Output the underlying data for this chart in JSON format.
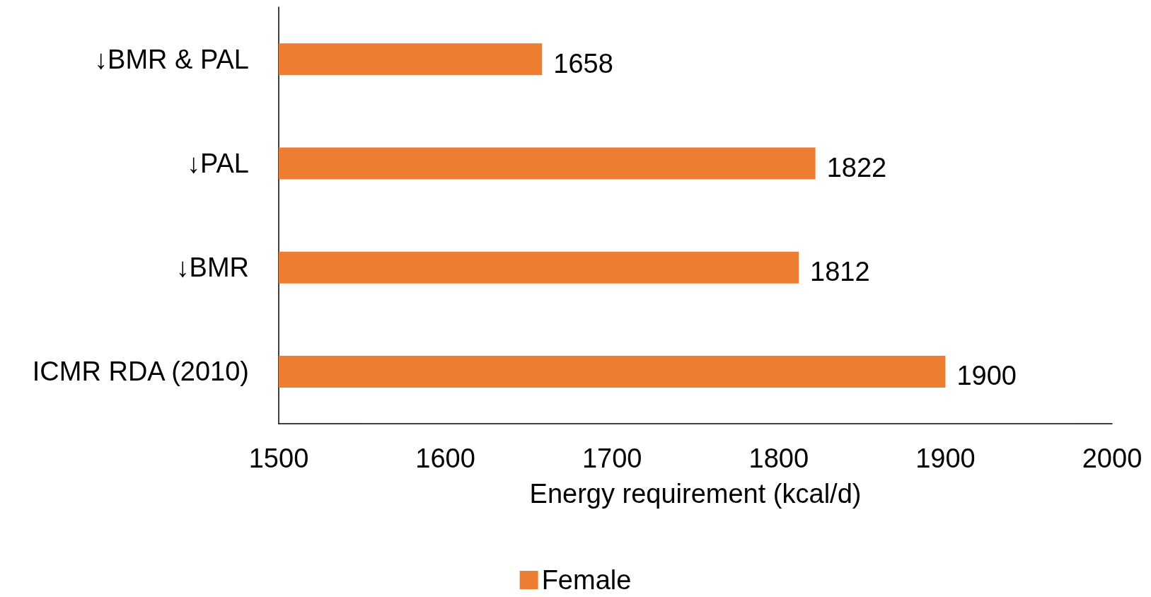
{
  "chart_data": {
    "type": "bar",
    "orientation": "horizontal",
    "xlabel": "Energy requirement (kcal/d)",
    "categories": [
      "↓BMR & PAL",
      "↓PAL",
      "↓BMR",
      "ICMR RDA (2010)"
    ],
    "series": [
      {
        "name": "Female",
        "color": "#ed7d31",
        "values": [
          1658,
          1822,
          1812,
          1900
        ]
      }
    ],
    "xlim": [
      1500,
      2000
    ],
    "xticks": [
      1500,
      1600,
      1700,
      1800,
      1900,
      2000
    ],
    "data_labels": true,
    "grid": false,
    "legend": "bottom"
  }
}
